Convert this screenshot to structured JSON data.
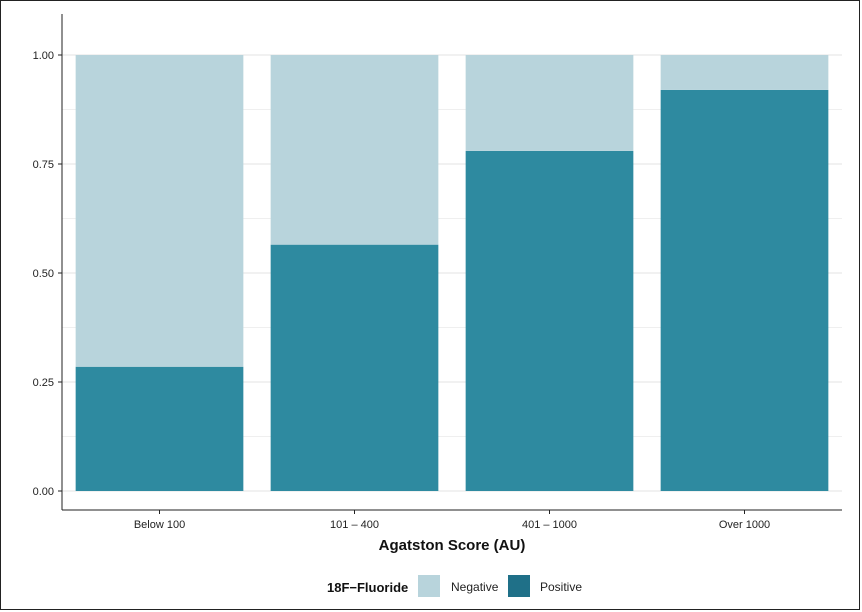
{
  "chart_data": {
    "type": "bar",
    "stacked": true,
    "categories": [
      "Below 100",
      "101 – 400",
      "401 – 1000",
      "Over 1000"
    ],
    "series": [
      {
        "name": "Positive",
        "values": [
          0.285,
          0.565,
          0.78,
          0.92
        ],
        "color": "#2e8aa0"
      },
      {
        "name": "Negative",
        "values": [
          0.715,
          0.435,
          0.22,
          0.08
        ],
        "color": "#b8d4dc"
      }
    ],
    "xlabel": "Agatston Score (AU)",
    "ylabel": "",
    "ylim": [
      0,
      1
    ],
    "yticks": [
      "0.00",
      "0.25",
      "0.50",
      "0.75",
      "1.00"
    ],
    "grid": true,
    "legend": {
      "title": "18F−Fluoride",
      "position": "bottom",
      "entries": [
        {
          "label": "Negative",
          "color": "#b8d4dc"
        },
        {
          "label": "Positive",
          "color": "#1f7088"
        }
      ]
    }
  }
}
